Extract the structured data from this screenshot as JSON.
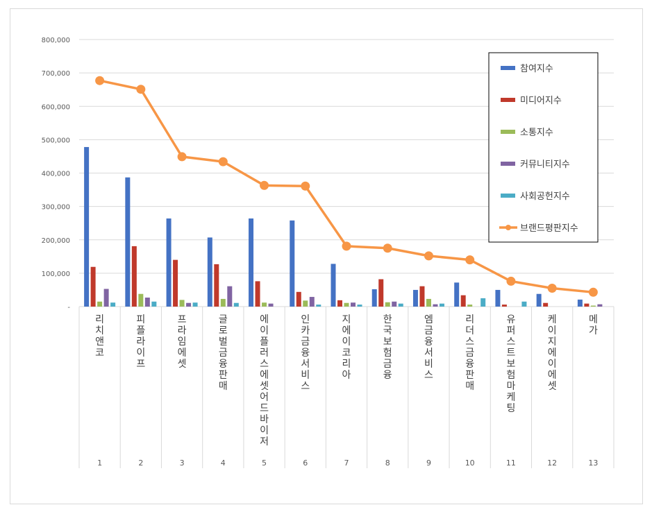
{
  "chart_data": {
    "type": "bar",
    "title": "",
    "xlabel": "",
    "ylabel": "",
    "ylim": [
      0,
      800000
    ],
    "y_ticks": [
      "-",
      "100,000",
      "200,000",
      "300,000",
      "400,000",
      "500,000",
      "600,000",
      "700,000",
      "800,000"
    ],
    "categories": [
      "1",
      "2",
      "3",
      "4",
      "5",
      "6",
      "7",
      "8",
      "9",
      "10",
      "11",
      "12",
      "13"
    ],
    "category_names": [
      "리치앤코",
      "피플라이프",
      "프라임에셋",
      "글로벌금융판매",
      "에이플러스에셋어드바이저",
      "인카금융서비스",
      "지에이코리아",
      "한국보험금융",
      "엠금융서비스",
      "리더스금융판매",
      "유퍼스트보험마케팅",
      "케이지에이에셋",
      "메가"
    ],
    "series": [
      {
        "name": "참여지수",
        "type": "bar",
        "color": "#4472c4",
        "values": [
          478000,
          387000,
          264000,
          207000,
          264000,
          258000,
          128000,
          52000,
          50000,
          72000,
          50000,
          38000,
          21000
        ]
      },
      {
        "name": "미디어지수",
        "type": "bar",
        "color": "#c0392b",
        "values": [
          119000,
          181000,
          140000,
          127000,
          76000,
          44000,
          19000,
          82000,
          61000,
          34000,
          6000,
          11000,
          9000
        ]
      },
      {
        "name": "소통지수",
        "type": "bar",
        "color": "#9bbb59",
        "values": [
          15000,
          38000,
          20000,
          23000,
          12000,
          18000,
          11000,
          13000,
          23000,
          6000,
          0,
          0,
          3000
        ]
      },
      {
        "name": "커뮤니티지수",
        "type": "bar",
        "color": "#8064a2",
        "values": [
          53000,
          27000,
          11000,
          61000,
          9000,
          29000,
          12000,
          15000,
          7000,
          0,
          0,
          0,
          7000
        ]
      },
      {
        "name": "사회공헌지수",
        "type": "bar",
        "color": "#4bacc6",
        "values": [
          12000,
          15000,
          12000,
          11000,
          0,
          6000,
          6000,
          9000,
          9000,
          25000,
          15000,
          0,
          0
        ]
      },
      {
        "name": "브랜드평판지수",
        "type": "line",
        "color": "#f79646",
        "values": [
          677000,
          651000,
          449000,
          434000,
          363000,
          361000,
          181000,
          175000,
          152000,
          140000,
          76000,
          55000,
          43000
        ]
      }
    ],
    "legend_position": "top-right",
    "grid": true
  }
}
